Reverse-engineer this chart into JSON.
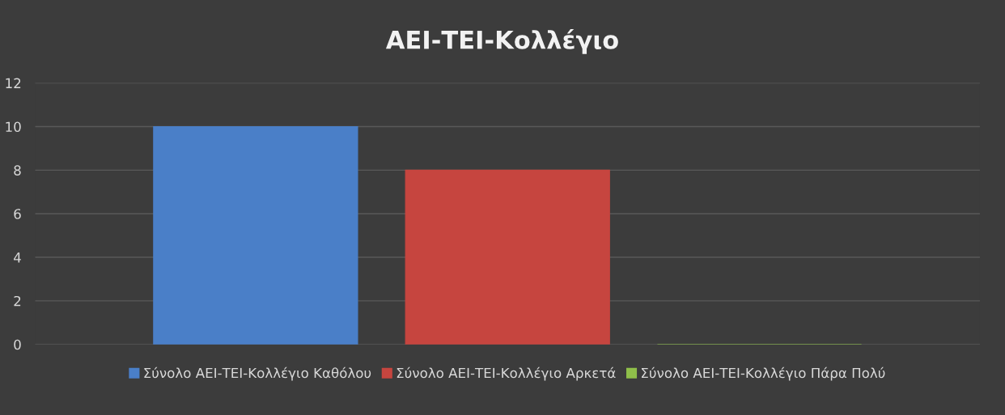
{
  "chart_data": {
    "type": "bar",
    "title": "ΑΕΙ-ΤΕΙ-Κολλέγιο",
    "categories": [
      null
    ],
    "series": [
      {
        "name": "Σύνολο ΑΕΙ-ΤΕΙ-Κολλέγιο Καθόλου",
        "color": "#4a7fc8",
        "values": [
          10
        ]
      },
      {
        "name": "Σύνολο ΑΕΙ-ΤΕΙ-Κολλέγιο Αρκετά",
        "color": "#c6453f",
        "values": [
          8
        ]
      },
      {
        "name": "Σύνολο ΑΕΙ-ΤΕΙ-Κολλέγιο Πάρα Πολύ",
        "color": "#8fbf4a",
        "values": [
          0
        ]
      }
    ],
    "ylim": [
      0,
      12
    ],
    "yticks": [
      0,
      2,
      4,
      6,
      8,
      10,
      12
    ],
    "grid": "y",
    "legend": "bottom"
  }
}
